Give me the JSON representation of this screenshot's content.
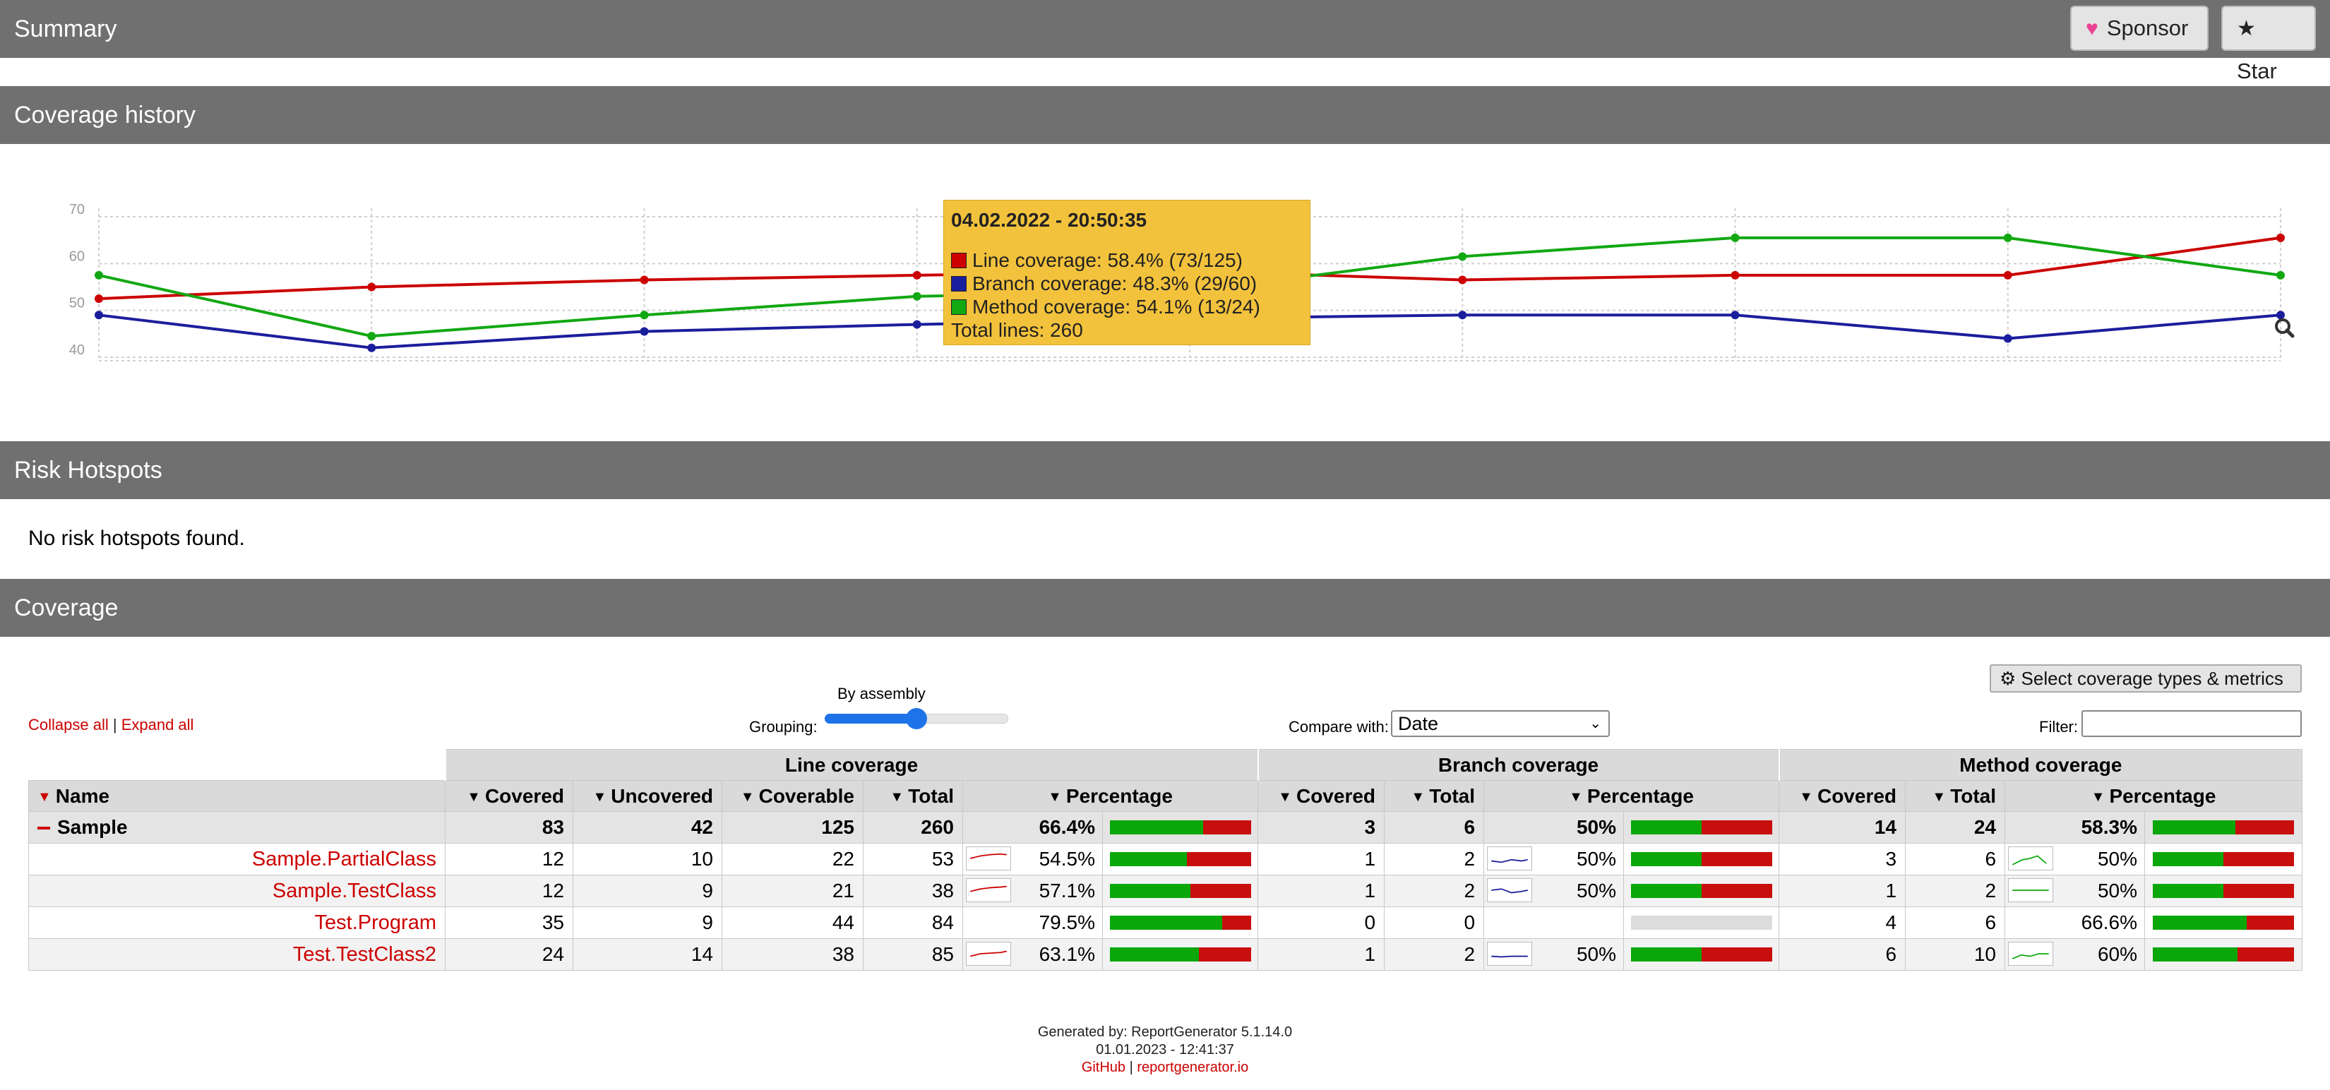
{
  "header": {
    "title": "Summary",
    "sponsor_label": "Sponsor",
    "star_label": "Star"
  },
  "sections": {
    "history": "Coverage history",
    "risk": "Risk Hotspots",
    "coverage": "Coverage"
  },
  "risk_message": "No risk hotspots found.",
  "tooltip": {
    "date": "04.02.2022 - 20:50:35",
    "line": "Line coverage: 58.4% (73/125)",
    "branch": "Branch coverage: 48.3% (29/60)",
    "method": "Method coverage: 54.1% (13/24)",
    "total": "Total lines: 260"
  },
  "chart_data": {
    "type": "line",
    "ylim": [
      40,
      70
    ],
    "yticks": [
      "70",
      "60",
      "50",
      "40"
    ],
    "grid": true,
    "legend": "tooltip",
    "colors": {
      "line": "#cc0000",
      "branch": "#1b1e9c",
      "method": "#12a812"
    },
    "series": [
      {
        "name": "Line coverage",
        "values": [
          52.5,
          55,
          56.5,
          57.5,
          58.4,
          56.5,
          57.5,
          57.5,
          65.5
        ]
      },
      {
        "name": "Branch coverage",
        "values": [
          49,
          42,
          45.5,
          47,
          48.3,
          49,
          49,
          44,
          49
        ]
      },
      {
        "name": "Method coverage",
        "values": [
          57.5,
          44.5,
          49,
          53,
          54.1,
          61.5,
          65.5,
          65.5,
          57.5
        ]
      }
    ]
  },
  "toolbar": {
    "collapse_all": "Collapse all",
    "expand_all": "Expand all",
    "separator": "|",
    "grouping_label": "Grouping:",
    "grouping_value": "By assembly",
    "grouping_level": 0.5,
    "compare_label": "Compare with:",
    "compare_value": "Date",
    "filter_label": "Filter:",
    "metrics_button": "Select coverage types & metrics"
  },
  "table": {
    "groups": {
      "line": "Line coverage",
      "branch": "Branch coverage",
      "method": "Method coverage"
    },
    "headers": {
      "name": "Name",
      "covered": "Covered",
      "uncovered": "Uncovered",
      "coverable": "Coverable",
      "total": "Total",
      "percentage": "Percentage"
    },
    "summary": {
      "name": "Sample",
      "line": {
        "covered": "83",
        "uncovered": "42",
        "coverable": "125",
        "total": "260",
        "pct": "66.4%",
        "ratio": 0.664
      },
      "branch": {
        "covered": "3",
        "total": "6",
        "pct": "50%",
        "ratio": 0.5
      },
      "method": {
        "covered": "14",
        "total": "24",
        "pct": "58.3%",
        "ratio": 0.583
      }
    },
    "rows": [
      {
        "name": "Sample.PartialClass",
        "line": {
          "covered": "12",
          "uncovered": "10",
          "coverable": "22",
          "total": "53",
          "pct": "54.5%",
          "ratio": 0.545
        },
        "branch": {
          "covered": "1",
          "total": "2",
          "pct": "50%",
          "ratio": 0.5
        },
        "method": {
          "covered": "3",
          "total": "6",
          "pct": "50%",
          "ratio": 0.5
        }
      },
      {
        "name": "Sample.TestClass",
        "line": {
          "covered": "12",
          "uncovered": "9",
          "coverable": "21",
          "total": "38",
          "pct": "57.1%",
          "ratio": 0.571
        },
        "branch": {
          "covered": "1",
          "total": "2",
          "pct": "50%",
          "ratio": 0.5
        },
        "method": {
          "covered": "1",
          "total": "2",
          "pct": "50%",
          "ratio": 0.5
        }
      },
      {
        "name": "Test.Program",
        "line": {
          "covered": "35",
          "uncovered": "9",
          "coverable": "44",
          "total": "84",
          "pct": "79.5%",
          "ratio": 0.795
        },
        "branch": {
          "covered": "0",
          "total": "0",
          "pct": "",
          "ratio": null
        },
        "method": {
          "covered": "4",
          "total": "6",
          "pct": "66.6%",
          "ratio": 0.666
        }
      },
      {
        "name": "Test.TestClass2",
        "line": {
          "covered": "24",
          "uncovered": "14",
          "coverable": "38",
          "total": "85",
          "pct": "63.1%",
          "ratio": 0.631
        },
        "branch": {
          "covered": "1",
          "total": "2",
          "pct": "50%",
          "ratio": 0.5
        },
        "method": {
          "covered": "6",
          "total": "10",
          "pct": "60%",
          "ratio": 0.6
        }
      }
    ]
  },
  "footer": {
    "generated": "Generated by: ReportGenerator 5.1.14.0",
    "date": "01.01.2023 - 12:41:37",
    "github": "GitHub",
    "sep": "|",
    "site": "reportgenerator.io"
  },
  "icons": {
    "sponsor": "heart-icon",
    "star": "star-icon",
    "zoom": "magnifier-icon",
    "metrics": "gear-icon"
  }
}
